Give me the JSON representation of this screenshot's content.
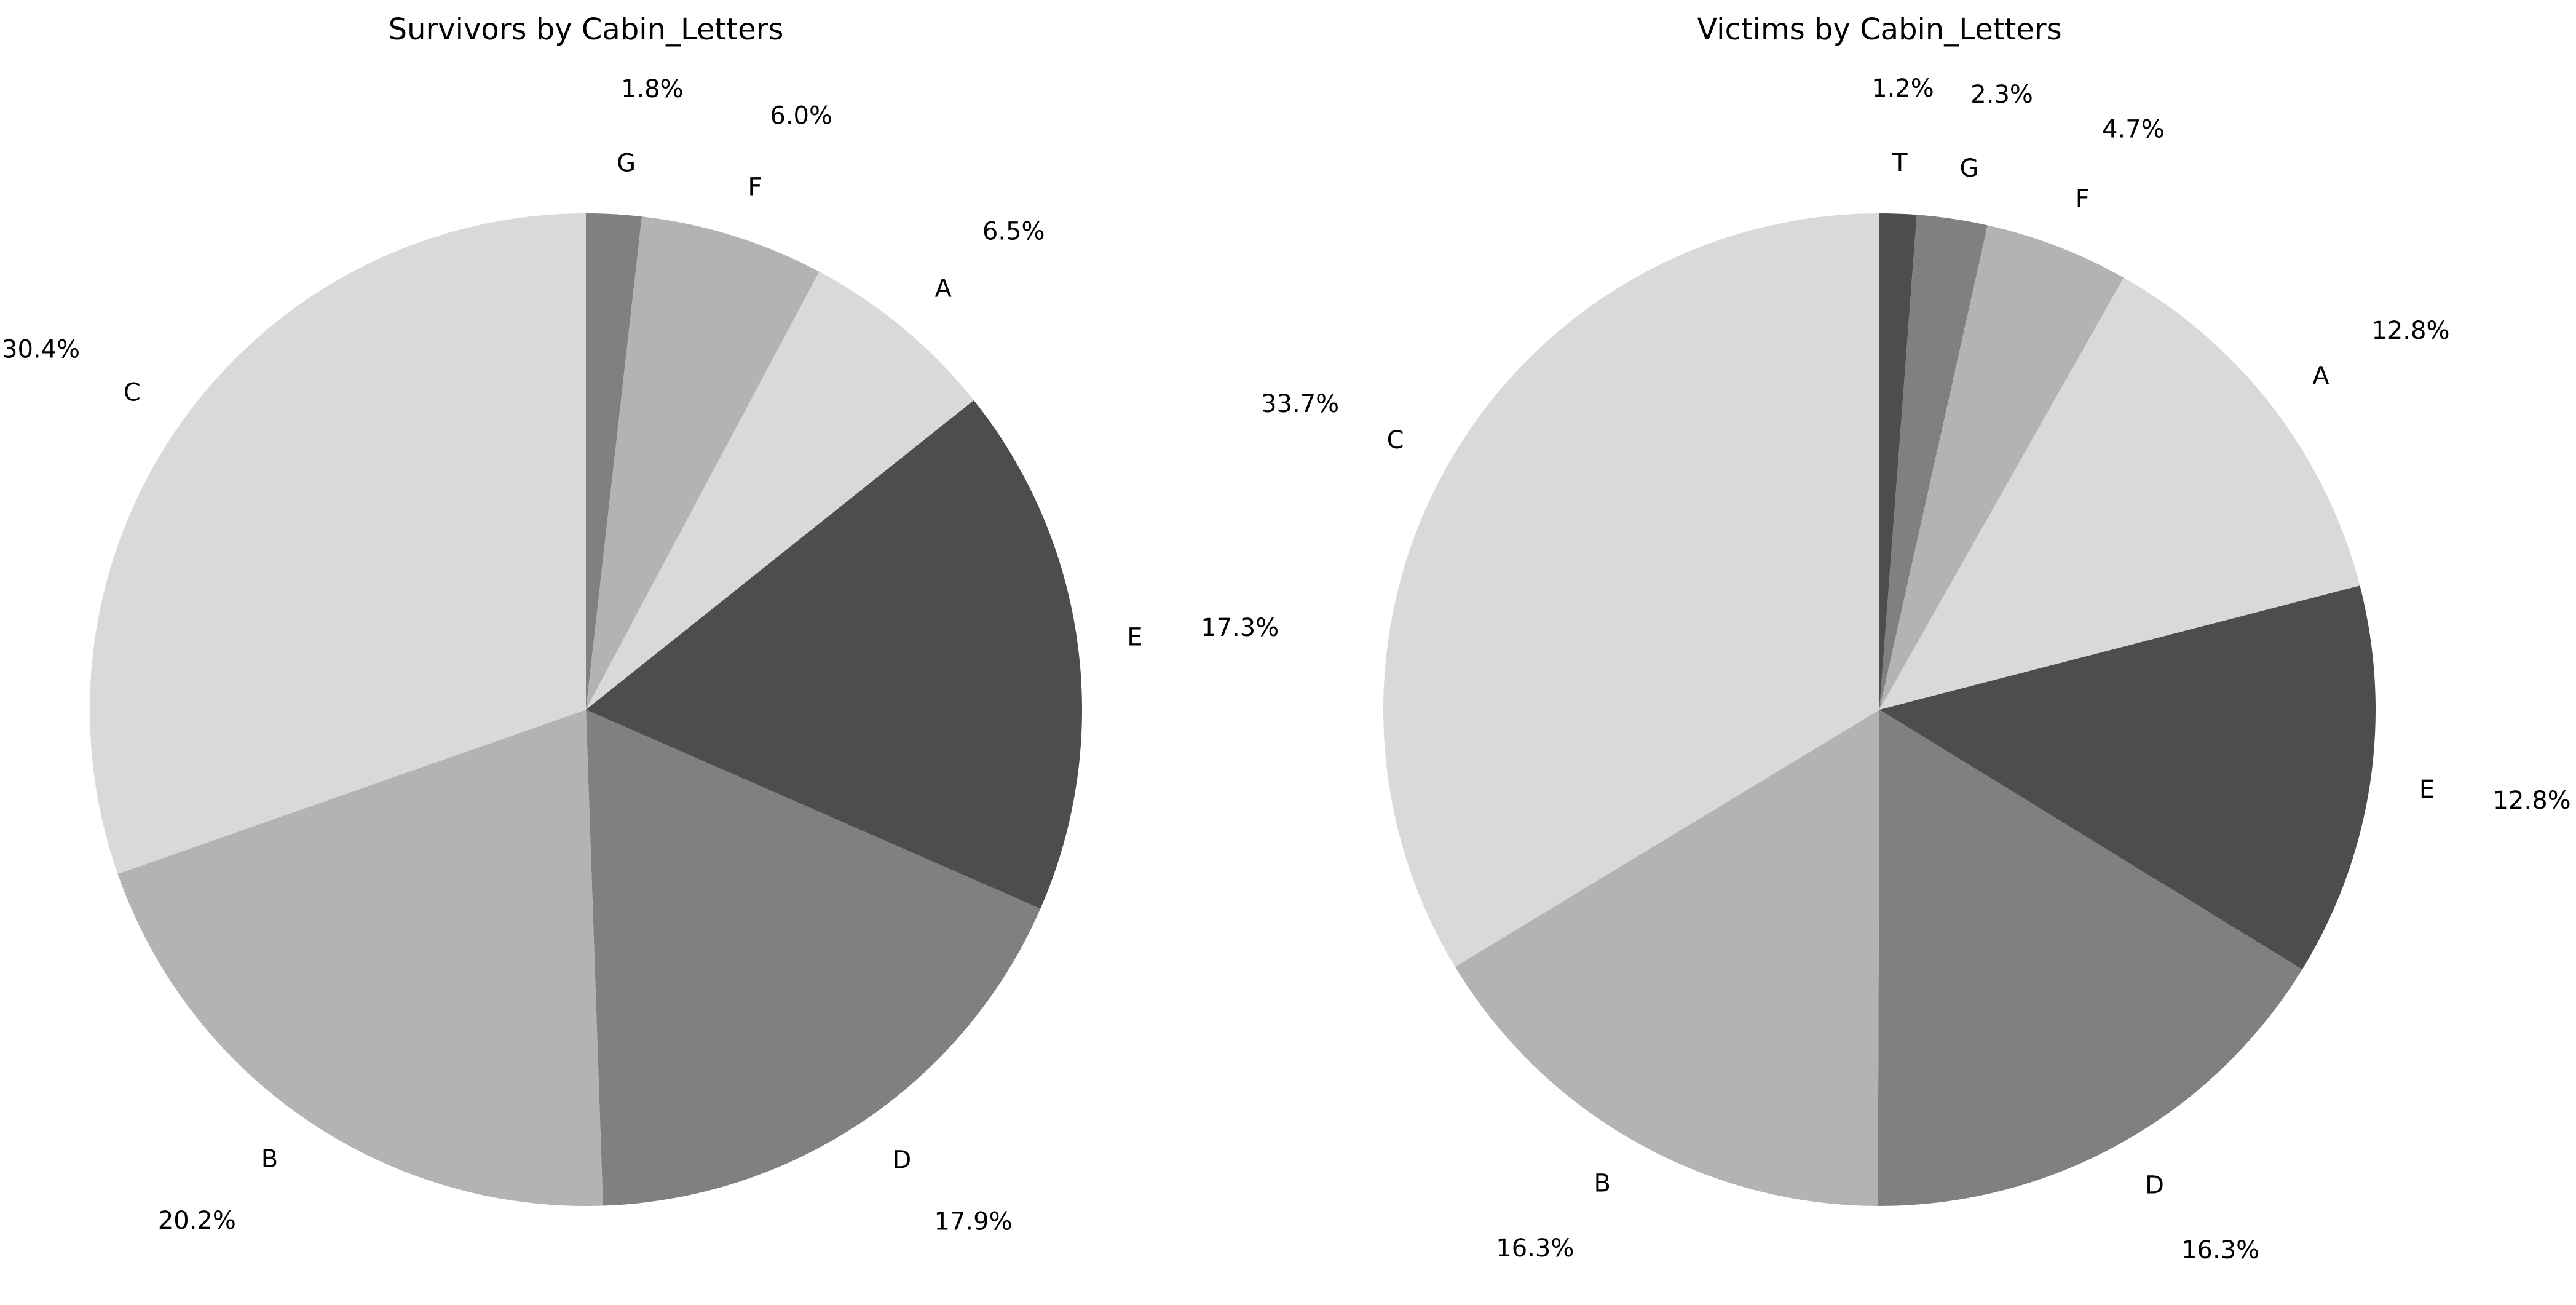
{
  "chart_data": [
    {
      "type": "pie",
      "title": "Survivors by Cabin_Letters",
      "start_angle_deg": 90,
      "direction": "clockwise",
      "slices": [
        {
          "label": "G",
          "value": 1.8,
          "pct_label": "1.8%",
          "color": "#808080"
        },
        {
          "label": "F",
          "value": 6.0,
          "pct_label": "6.0%",
          "color": "#b3b3b3"
        },
        {
          "label": "A",
          "value": 6.5,
          "pct_label": "6.5%",
          "color": "#d9d9d9"
        },
        {
          "label": "E",
          "value": 17.3,
          "pct_label": "17.3%",
          "color": "#4d4d4d"
        },
        {
          "label": "D",
          "value": 17.9,
          "pct_label": "17.9%",
          "color": "#808080"
        },
        {
          "label": "B",
          "value": 20.2,
          "pct_label": "20.2%",
          "color": "#b3b3b3"
        },
        {
          "label": "C",
          "value": 30.4,
          "pct_label": "30.4%",
          "color": "#d9d9d9"
        }
      ]
    },
    {
      "type": "pie",
      "title": "Victims by Cabin_Letters",
      "start_angle_deg": 90,
      "direction": "clockwise",
      "slices": [
        {
          "label": "T",
          "value": 1.2,
          "pct_label": "1.2%",
          "color": "#4d4d4d"
        },
        {
          "label": "G",
          "value": 2.3,
          "pct_label": "2.3%",
          "color": "#808080"
        },
        {
          "label": "F",
          "value": 4.7,
          "pct_label": "4.7%",
          "color": "#b3b3b3"
        },
        {
          "label": "A",
          "value": 12.8,
          "pct_label": "12.8%",
          "color": "#d9d9d9"
        },
        {
          "label": "E",
          "value": 12.8,
          "pct_label": "12.8%",
          "color": "#4d4d4d"
        },
        {
          "label": "D",
          "value": 16.3,
          "pct_label": "16.3%",
          "color": "#808080"
        },
        {
          "label": "B",
          "value": 16.3,
          "pct_label": "16.3%",
          "color": "#b3b3b3"
        },
        {
          "label": "C",
          "value": 33.7,
          "pct_label": "33.7%",
          "color": "#d9d9d9"
        }
      ]
    }
  ]
}
